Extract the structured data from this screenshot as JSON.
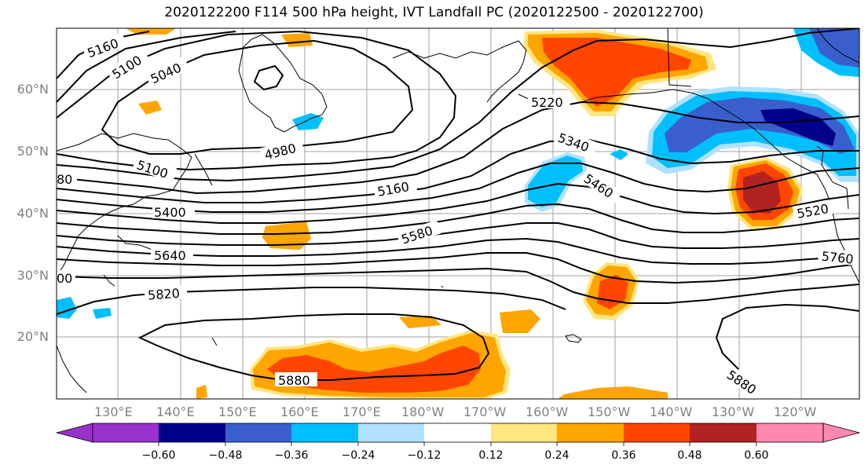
{
  "title": "2020122200 F114 500 hPa height, IVT Landfall PC (2020122500 - 2020122700)",
  "map": {
    "lon_labels": [
      "130°E",
      "140°E",
      "150°E",
      "160°E",
      "170°E",
      "180°W",
      "170°W",
      "160°W",
      "150°W",
      "140°W",
      "130°W",
      "120°W"
    ],
    "lat_labels": [
      "60°N",
      "50°N",
      "40°N",
      "30°N",
      "20°N"
    ],
    "contour_labels": [
      "5160",
      "5100",
      "5040",
      "4980",
      "5100",
      "5220",
      "5340",
      "5460",
      "5160",
      "5400",
      "5580",
      "5640",
      "5520",
      "5760",
      "5820",
      "5880",
      "5880",
      "80",
      "00"
    ]
  },
  "colorbar": {
    "colors": [
      "#9932cc",
      "#00008b",
      "#3a5fcd",
      "#00bfff",
      "#b0e2ff",
      "#ffffff",
      "#ffe680",
      "#ffa500",
      "#ff4500",
      "#b22222",
      "#ff88b0"
    ],
    "tick_labels": [
      "−0.60",
      "−0.48",
      "−0.36",
      "−0.24",
      "−0.12",
      "0.12",
      "0.24",
      "0.36",
      "0.48",
      "0.60"
    ]
  }
}
